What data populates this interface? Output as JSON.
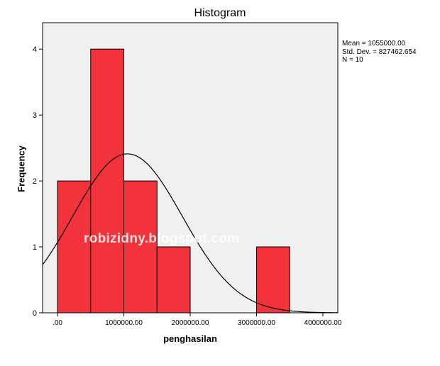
{
  "chart_data": {
    "type": "bar",
    "title": "Histogram",
    "xlabel": "penghasilan",
    "ylabel": "Frequency",
    "bins": [
      {
        "from": 0,
        "to": 500000,
        "count": 2
      },
      {
        "from": 500000,
        "to": 1000000,
        "count": 4
      },
      {
        "from": 1000000,
        "to": 1500000,
        "count": 2
      },
      {
        "from": 1500000,
        "to": 2000000,
        "count": 1
      },
      {
        "from": 2000000,
        "to": 2500000,
        "count": 0
      },
      {
        "from": 2500000,
        "to": 3000000,
        "count": 0
      },
      {
        "from": 3000000,
        "to": 3500000,
        "count": 1
      }
    ],
    "xlim": [
      -225000,
      4225000
    ],
    "ylim": [
      0,
      4.4
    ],
    "xticks": [
      0,
      1000000,
      2000000,
      3000000,
      4000000
    ],
    "xtick_labels": [
      ".00",
      "1000000.00",
      "2000000.00",
      "3000000.00",
      "4000000.00"
    ],
    "yticks": [
      0,
      1,
      2,
      3,
      4
    ],
    "ytick_labels": [
      "0",
      "1",
      "2",
      "3",
      "4"
    ],
    "normal_curve": {
      "mean": 1055000,
      "std": 827462.654,
      "n": 10,
      "bin_width": 500000
    },
    "stats": {
      "mean": "Mean = 1055000.00",
      "std_dev": "Std. Dev. = 827462.654",
      "n": "N = 10"
    },
    "grid": false,
    "bar_color": "#f2333b",
    "plot_background": "#f0f0f0"
  },
  "watermark": "robizidny.blogspot.com"
}
